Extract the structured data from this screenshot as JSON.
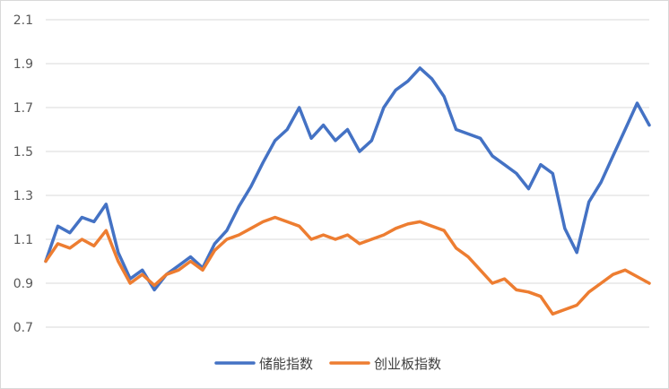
{
  "chart_data": {
    "type": "line",
    "title": "",
    "xlabel": "",
    "ylabel": "",
    "ylim": [
      0.7,
      2.1
    ],
    "yticks": [
      "2.1",
      "1.9",
      "1.7",
      "1.5",
      "1.3",
      "1.1",
      "0.9",
      "0.7"
    ],
    "grid": true,
    "legend_position": "bottom",
    "x": [
      0,
      0.02,
      0.04,
      0.06,
      0.08,
      0.1,
      0.12,
      0.14,
      0.16,
      0.18,
      0.2,
      0.22,
      0.24,
      0.26,
      0.28,
      0.3,
      0.32,
      0.34,
      0.36,
      0.38,
      0.4,
      0.42,
      0.44,
      0.46,
      0.48,
      0.5,
      0.52,
      0.54,
      0.56,
      0.58,
      0.6,
      0.62,
      0.64,
      0.66,
      0.68,
      0.7,
      0.72,
      0.74,
      0.76,
      0.78,
      0.8,
      0.82,
      0.84,
      0.86,
      0.88,
      0.9,
      0.92,
      0.94,
      0.96,
      0.98,
      1.0
    ],
    "series": [
      {
        "name": "储能指数",
        "color": "#4472c4",
        "values": [
          1.0,
          1.16,
          1.13,
          1.2,
          1.18,
          1.26,
          1.04,
          0.92,
          0.96,
          0.87,
          0.94,
          0.98,
          1.02,
          0.97,
          1.08,
          1.14,
          1.25,
          1.34,
          1.45,
          1.55,
          1.6,
          1.7,
          1.56,
          1.62,
          1.55,
          1.6,
          1.5,
          1.55,
          1.7,
          1.78,
          1.82,
          1.88,
          1.83,
          1.75,
          1.6,
          1.58,
          1.56,
          1.48,
          1.44,
          1.4,
          1.33,
          1.44,
          1.4,
          1.15,
          1.04,
          1.27,
          1.36,
          1.48,
          1.6,
          1.72,
          1.62
        ]
      },
      {
        "name": "创业板指数",
        "color": "#ed7d31",
        "values": [
          1.0,
          1.08,
          1.06,
          1.1,
          1.07,
          1.14,
          1.0,
          0.9,
          0.94,
          0.89,
          0.94,
          0.96,
          1.0,
          0.96,
          1.05,
          1.1,
          1.12,
          1.15,
          1.18,
          1.2,
          1.18,
          1.16,
          1.1,
          1.12,
          1.1,
          1.12,
          1.08,
          1.1,
          1.12,
          1.15,
          1.17,
          1.18,
          1.16,
          1.14,
          1.06,
          1.02,
          0.96,
          0.9,
          0.92,
          0.87,
          0.86,
          0.84,
          0.76,
          0.78,
          0.8,
          0.86,
          0.9,
          0.94,
          0.96,
          0.93,
          0.9
        ]
      }
    ]
  }
}
